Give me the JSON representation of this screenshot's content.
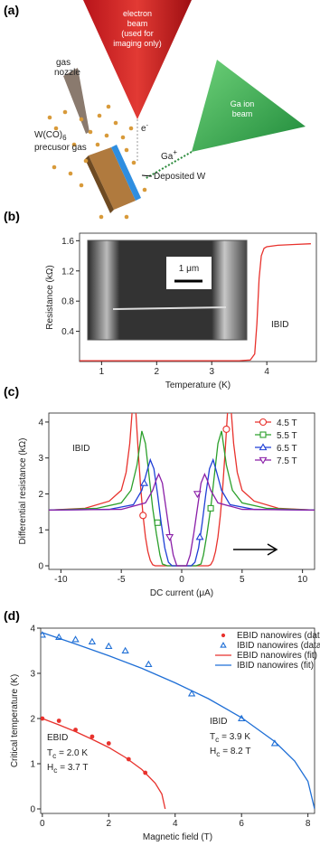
{
  "panel_a": {
    "label": "(a)",
    "electron_beam": [
      "electron",
      "beam",
      "(used for",
      "imaging only)"
    ],
    "gas_nozzle": [
      "gas",
      "nozzle"
    ],
    "precursor": {
      "formula": "W(CO)",
      "sub": "6",
      "text": "precusor gas"
    },
    "electron": {
      "symbol": "e",
      "sup": "-"
    },
    "gallium": {
      "symbol": "Ga",
      "sup": "+"
    },
    "ion_beam": [
      "Ga ion",
      "beam"
    ],
    "deposit": "Deposited W"
  },
  "chart_data": [
    {
      "type": "line",
      "panel_label": "(b)",
      "x_label": "Temperature (K)",
      "y_label": "Resistance (kΩ)",
      "xlim": [
        0.6,
        4.9
      ],
      "ylim": [
        0,
        1.7
      ],
      "xticks": [
        1,
        2,
        3,
        4
      ],
      "yticks": [
        0.4,
        0.8,
        1.2,
        1.6
      ],
      "inset_scale": "1 μm",
      "annotations": [
        "IBID"
      ],
      "series": [
        {
          "color": "#e8322d",
          "x": [
            0.6,
            1,
            2,
            3,
            3.5,
            3.7,
            3.78,
            3.82,
            3.86,
            3.9,
            3.95,
            4.0,
            4.2,
            4.5,
            4.8
          ],
          "values": [
            0.01,
            0.01,
            0.01,
            0.01,
            0.01,
            0.02,
            0.1,
            0.5,
            1.1,
            1.4,
            1.5,
            1.52,
            1.54,
            1.55,
            1.56
          ]
        }
      ]
    },
    {
      "type": "line",
      "panel_label": "(c)",
      "x_label": "DC current (μA)",
      "y_label": "Differential resistance (kΩ)",
      "xlim": [
        -11,
        11
      ],
      "ylim": [
        -0.1,
        4.25
      ],
      "xticks": [
        -10,
        -5,
        0,
        5,
        10
      ],
      "yticks": [
        0,
        1,
        2,
        3,
        4
      ],
      "legend": "upper right",
      "annotations": [
        "IBID"
      ],
      "series": [
        {
          "name": "4.5 T",
          "color": "#e8322d",
          "marker": "circle",
          "x": [
            -11,
            -8,
            -6,
            -5,
            -4.6,
            -4.3,
            -4.1,
            -3.95,
            -3.8,
            -3.6,
            -3.4,
            -3.2,
            -3.0,
            -2.8,
            -2.6,
            -2.4,
            -2.2,
            0,
            2.2,
            2.4,
            2.6,
            2.8,
            3.0,
            3.2,
            3.4,
            3.6,
            3.8,
            3.95,
            4.1,
            4.3,
            4.6,
            5,
            6,
            8,
            11
          ],
          "values": [
            1.55,
            1.6,
            1.8,
            2.1,
            2.6,
            3.4,
            4.3,
            null,
            4.3,
            3.2,
            2.2,
            1.4,
            0.8,
            0.4,
            0.15,
            0.03,
            0,
            0,
            0,
            0.03,
            0.15,
            0.4,
            0.8,
            1.4,
            2.2,
            3.2,
            4.3,
            null,
            4.3,
            3.4,
            2.6,
            2.1,
            1.8,
            1.6,
            1.55
          ],
          "markers": {
            "x": [
              -3.2,
              3.7
            ],
            "values": [
              1.4,
              3.8
            ]
          }
        },
        {
          "name": "5.5 T",
          "color": "#2ca02c",
          "marker": "square",
          "x": [
            -11,
            -7,
            -5,
            -4.2,
            -3.7,
            -3.3,
            -3.0,
            -2.7,
            -2.4,
            -2.1,
            -1.8,
            -1.6,
            -1.2,
            0,
            1.2,
            1.6,
            1.8,
            2.1,
            2.4,
            2.7,
            3.0,
            3.3,
            3.7,
            4.2,
            5,
            7,
            11
          ],
          "values": [
            1.55,
            1.6,
            1.75,
            2.1,
            2.8,
            3.75,
            3.4,
            2.5,
            1.6,
            0.9,
            0.3,
            0.05,
            0,
            0,
            0,
            0.05,
            0.3,
            0.9,
            1.6,
            2.5,
            3.4,
            3.75,
            2.8,
            2.1,
            1.75,
            1.6,
            1.55
          ],
          "markers": {
            "x": [
              -2.0,
              2.4
            ],
            "values": [
              1.2,
              1.6
            ]
          }
        },
        {
          "name": "6.5 T",
          "color": "#1f3fd6",
          "marker": "triangle",
          "x": [
            -11,
            -6,
            -4,
            -3.3,
            -2.9,
            -2.6,
            -2.3,
            -2.0,
            -1.7,
            -1.4,
            -1.1,
            -0.8,
            0,
            0.8,
            1.1,
            1.4,
            1.7,
            2.0,
            2.3,
            2.6,
            2.9,
            3.3,
            4,
            6,
            11
          ],
          "values": [
            1.55,
            1.57,
            1.7,
            2.1,
            2.6,
            2.95,
            2.7,
            2.0,
            1.2,
            0.5,
            0.1,
            0,
            0,
            0,
            0.1,
            0.5,
            1.2,
            2.0,
            2.7,
            2.95,
            2.6,
            2.1,
            1.7,
            1.57,
            1.55
          ],
          "markers": {
            "x": [
              -3.1,
              1.5
            ],
            "values": [
              2.3,
              0.8
            ]
          }
        },
        {
          "name": "7.5 T",
          "color": "#8a1fa8",
          "marker": "triangle-down",
          "x": [
            -11,
            -5,
            -3,
            -2.4,
            -2.1,
            -1.9,
            -1.6,
            -1.3,
            -1.0,
            -0.7,
            -0.4,
            0,
            0.4,
            0.7,
            1.0,
            1.3,
            1.6,
            1.9,
            2.1,
            2.4,
            3,
            5,
            11
          ],
          "values": [
            1.55,
            1.57,
            1.75,
            2.1,
            2.4,
            2.55,
            2.3,
            1.6,
            0.9,
            0.3,
            0,
            0,
            0,
            0.3,
            0.9,
            1.6,
            2.3,
            2.55,
            2.4,
            2.1,
            1.75,
            1.57,
            1.55
          ],
          "markers": {
            "x": [
              -1.0,
              1.3
            ],
            "values": [
              0.8,
              2.0
            ]
          }
        }
      ]
    },
    {
      "type": "scatter",
      "panel_label": "(d)",
      "x_label": "Magnetic field (T)",
      "y_label": "Critical temperature (K)",
      "xlim": [
        -0.05,
        8.2
      ],
      "ylim": [
        -0.1,
        4.0
      ],
      "xticks": [
        0,
        2,
        4,
        6,
        8
      ],
      "yticks": [
        0,
        1,
        2,
        3,
        4
      ],
      "legend": "upper right",
      "annotations": [
        {
          "text": "EBID"
        },
        {
          "main": "T",
          "sub": "c",
          "rest": " = 2.0 K"
        },
        {
          "main": "H",
          "sub": "c",
          "rest": " = 3.7 T"
        },
        {
          "text": "IBID"
        },
        {
          "main": "T",
          "sub": "c",
          "rest": " = 3.9 K"
        },
        {
          "main": "H",
          "sub": "c",
          "rest": " = 8.2 T"
        }
      ],
      "series": [
        {
          "name": "EBID nanowires (data)",
          "color": "#e8322d",
          "marker": "dot",
          "x": [
            0,
            0.5,
            1.0,
            1.5,
            2.0,
            2.6,
            3.1
          ],
          "values": [
            2.0,
            1.95,
            1.75,
            1.6,
            1.45,
            1.1,
            0.8
          ]
        },
        {
          "name": "IBID nanowires (data)",
          "color": "#1f6fd6",
          "marker": "triangle",
          "x": [
            0,
            0.5,
            1.0,
            1.5,
            2.0,
            2.5,
            3.2,
            4.5,
            6.0,
            7.0
          ],
          "values": [
            3.85,
            3.8,
            3.75,
            3.7,
            3.6,
            3.5,
            3.2,
            2.55,
            2.0,
            1.45
          ]
        },
        {
          "name": "EBID nanowires (fit)",
          "color": "#e8322d",
          "marker": "line",
          "x": [
            0,
            0.5,
            1,
            1.5,
            2,
            2.5,
            3,
            3.4,
            3.6,
            3.7
          ],
          "values": [
            2.0,
            1.86,
            1.71,
            1.54,
            1.36,
            1.14,
            0.87,
            0.57,
            0.33,
            0
          ]
        },
        {
          "name": "IBID nanowires (fit)",
          "color": "#1f6fd6",
          "marker": "line",
          "x": [
            0,
            1,
            2,
            3,
            4,
            5,
            6,
            7,
            7.6,
            8,
            8.2
          ],
          "values": [
            3.9,
            3.65,
            3.39,
            3.11,
            2.79,
            2.44,
            2.02,
            1.49,
            1.06,
            0.61,
            0
          ]
        }
      ]
    }
  ]
}
